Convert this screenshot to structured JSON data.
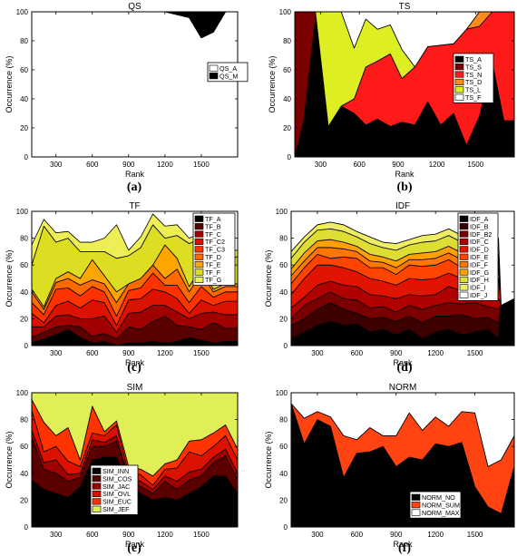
{
  "panel_tags": [
    "(a)",
    "(b)",
    "(c)",
    "(d)",
    "(e)",
    "(f)"
  ],
  "chart_data": [
    {
      "type": "area",
      "title": "QS",
      "xlabel": "Rank",
      "ylabel": "Occurrence (%)",
      "x": [
        100,
        200,
        300,
        400,
        500,
        600,
        700,
        800,
        900,
        1000,
        1100,
        1200,
        1300,
        1400,
        1500,
        1600,
        1700
      ],
      "xticks": [
        300,
        600,
        900,
        1200,
        1500
      ],
      "xlim": [
        100,
        1800
      ],
      "ylim": [
        0,
        100
      ],
      "yticks": [
        0,
        20,
        40,
        60,
        80,
        100
      ],
      "legend": "right",
      "series": [
        {
          "name": "QS_A",
          "color": "#ffffff",
          "values": [
            100,
            100,
            100,
            100,
            100,
            100,
            100,
            100,
            100,
            100,
            100,
            100,
            98,
            96,
            82,
            86,
            100
          ]
        },
        {
          "name": "QS_M",
          "color": "#000000",
          "values": [
            0,
            0,
            0,
            0,
            0,
            0,
            0,
            0,
            0,
            0,
            0,
            0,
            2,
            4,
            18,
            14,
            0
          ]
        }
      ]
    },
    {
      "type": "area",
      "title": "TS",
      "xlabel": "Rank",
      "ylabel": "Occurrence (%)",
      "x": [
        100,
        170,
        260,
        360,
        460,
        560,
        650,
        740,
        840,
        930,
        1030,
        1130,
        1230,
        1330,
        1430,
        1530,
        1630,
        1720,
        1800
      ],
      "xticks": [
        300,
        600,
        900,
        1200,
        1500
      ],
      "xlim": [
        100,
        1800
      ],
      "ylim": [
        0,
        100
      ],
      "yticks": [
        0,
        20,
        40,
        60,
        80,
        100
      ],
      "legend": "right",
      "series": [
        {
          "name": "TS_A",
          "color": "#000000",
          "values": [
            0,
            25,
            95,
            21,
            35,
            30,
            22,
            26,
            21,
            24,
            22,
            38,
            22,
            30,
            8,
            28,
            65,
            25,
            25
          ]
        },
        {
          "name": "TS_S",
          "color": "#7a0000",
          "values": [
            100,
            75,
            5,
            0,
            0,
            0,
            0,
            0,
            0,
            0,
            0,
            0,
            0,
            0,
            0,
            0,
            0,
            0,
            0
          ]
        },
        {
          "name": "TS_N",
          "color": "#ff1a1a",
          "values": [
            0,
            0,
            0,
            0,
            0,
            10,
            40,
            40,
            50,
            30,
            40,
            38,
            55,
            48,
            80,
            62,
            35,
            75,
            75
          ]
        },
        {
          "name": "TS_D",
          "color": "#ff8c1a",
          "values": [
            0,
            0,
            0,
            0,
            0,
            0,
            0,
            0,
            0,
            0,
            0,
            0,
            0,
            0,
            0,
            10,
            0,
            0,
            0
          ]
        },
        {
          "name": "TS_L",
          "color": "#ddee22",
          "values": [
            0,
            0,
            0,
            79,
            65,
            35,
            33,
            22,
            20,
            20,
            0,
            0,
            0,
            0,
            0,
            0,
            0,
            0,
            0
          ]
        },
        {
          "name": "TS_F",
          "color": "#ffffff",
          "values": [
            0,
            0,
            0,
            0,
            0,
            25,
            5,
            12,
            9,
            26,
            38,
            24,
            23,
            22,
            12,
            0,
            0,
            0,
            0
          ]
        }
      ]
    },
    {
      "type": "area",
      "title": "TF",
      "xlabel": "Rank",
      "ylabel": "Occurrence (%)",
      "x": [
        100,
        200,
        300,
        400,
        500,
        600,
        700,
        800,
        900,
        1000,
        1100,
        1200,
        1300,
        1400,
        1500,
        1600,
        1700
      ],
      "xticks": [
        300,
        600,
        900,
        1200,
        1500
      ],
      "xlim": [
        100,
        1800
      ],
      "ylim": [
        0,
        100
      ],
      "yticks": [
        0,
        20,
        40,
        60,
        80,
        100
      ],
      "legend": "right",
      "series": [
        {
          "name": "TF_A",
          "color": "#000000",
          "values": [
            2,
            5,
            8,
            12,
            6,
            2,
            3,
            0,
            2,
            2,
            3,
            2,
            3,
            6,
            4,
            2,
            3
          ]
        },
        {
          "name": "TF_B",
          "color": "#5a0000",
          "values": [
            4,
            5,
            6,
            3,
            8,
            5,
            6,
            5,
            12,
            10,
            15,
            20,
            12,
            8,
            8,
            15,
            10
          ]
        },
        {
          "name": "TF_C",
          "color": "#a00000",
          "values": [
            8,
            4,
            8,
            8,
            6,
            13,
            13,
            5,
            10,
            13,
            12,
            8,
            10,
            6,
            12,
            8,
            10
          ]
        },
        {
          "name": "TF_C2",
          "color": "#dd1100",
          "values": [
            10,
            3,
            8,
            10,
            8,
            14,
            10,
            5,
            10,
            10,
            12,
            10,
            10,
            4,
            10,
            5,
            10
          ]
        },
        {
          "name": "TF_C3",
          "color": "#ff3300",
          "values": [
            8,
            6,
            12,
            10,
            9,
            10,
            8,
            7,
            7,
            8,
            12,
            5,
            10,
            8,
            10,
            6,
            7
          ]
        },
        {
          "name": "TF_D",
          "color": "#ff6a00",
          "values": [
            8,
            4,
            5,
            7,
            8,
            5,
            6,
            10,
            5,
            7,
            6,
            5,
            12,
            8,
            10,
            4,
            4
          ]
        },
        {
          "name": "TF_E",
          "color": "#ffa500",
          "values": [
            2,
            2,
            3,
            5,
            5,
            15,
            6,
            8,
            0,
            0,
            0,
            25,
            8,
            4,
            4,
            2,
            2
          ]
        },
        {
          "name": "TF_F",
          "color": "#dddd22",
          "values": [
            18,
            60,
            27,
            25,
            20,
            6,
            18,
            25,
            21,
            23,
            30,
            5,
            17,
            32,
            22,
            22,
            20
          ]
        },
        {
          "name": "TF_G",
          "color": "#eeee55",
          "values": [
            15,
            5,
            7,
            5,
            7,
            7,
            10,
            25,
            4,
            8,
            8,
            9,
            8,
            4,
            4,
            5,
            5
          ]
        }
      ]
    },
    {
      "type": "area",
      "title": "IDF",
      "xlabel": "Rank",
      "ylabel": "Occurrence (%)",
      "x": [
        100,
        200,
        300,
        400,
        500,
        600,
        700,
        800,
        900,
        1000,
        1100,
        1200,
        1300,
        1400,
        1500,
        1600,
        1680,
        1700,
        1800
      ],
      "xticks": [
        300,
        600,
        900,
        1200,
        1500
      ],
      "xlim": [
        100,
        1800
      ],
      "ylim": [
        0,
        100
      ],
      "yticks": [
        0,
        20,
        40,
        60,
        80,
        100
      ],
      "legend": "right",
      "series": [
        {
          "name": "IDF_A",
          "color": "#000000",
          "values": [
            5,
            10,
            15,
            18,
            15,
            16,
            10,
            12,
            8,
            12,
            5,
            10,
            12,
            8,
            10,
            12,
            5,
            30,
            35
          ]
        },
        {
          "name": "IDF_B",
          "color": "#3c0000",
          "values": [
            10,
            10,
            12,
            14,
            12,
            8,
            10,
            9,
            10,
            10,
            12,
            12,
            10,
            15,
            10,
            9,
            12,
            0,
            0
          ]
        },
        {
          "name": "IDF_B2",
          "color": "#7a0000",
          "values": [
            5,
            10,
            8,
            8,
            8,
            10,
            8,
            8,
            7,
            8,
            10,
            8,
            10,
            8,
            12,
            8,
            10,
            0,
            0
          ]
        },
        {
          "name": "IDF_C",
          "color": "#b00000",
          "values": [
            8,
            6,
            10,
            8,
            10,
            10,
            10,
            8,
            10,
            8,
            10,
            8,
            12,
            10,
            8,
            8,
            8,
            0,
            0
          ]
        },
        {
          "name": "IDF_D",
          "color": "#e01400",
          "values": [
            10,
            14,
            15,
            12,
            13,
            11,
            12,
            11,
            10,
            12,
            12,
            12,
            10,
            9,
            10,
            13,
            15,
            0,
            0
          ]
        },
        {
          "name": "IDF_E",
          "color": "#ff4400",
          "values": [
            8,
            8,
            8,
            5,
            8,
            10,
            8,
            10,
            8,
            10,
            10,
            10,
            10,
            8,
            8,
            8,
            8,
            0,
            0
          ]
        },
        {
          "name": "IDF_F",
          "color": "#ff7700",
          "values": [
            6,
            5,
            5,
            8,
            6,
            5,
            5,
            4,
            5,
            4,
            5,
            5,
            5,
            6,
            5,
            4,
            5,
            0,
            0
          ]
        },
        {
          "name": "IDF_G",
          "color": "#ffa000",
          "values": [
            5,
            6,
            5,
            6,
            5,
            4,
            5,
            4,
            5,
            4,
            5,
            5,
            5,
            5,
            5,
            5,
            5,
            0,
            0
          ]
        },
        {
          "name": "IDF_H",
          "color": "#dddd33",
          "values": [
            8,
            8,
            8,
            8,
            8,
            7,
            8,
            7,
            8,
            7,
            8,
            8,
            8,
            8,
            8,
            8,
            8,
            0,
            0
          ]
        },
        {
          "name": "IDF_I",
          "color": "#eeee66",
          "values": [
            5,
            4,
            4,
            5,
            5,
            4,
            5,
            4,
            5,
            4,
            5,
            5,
            5,
            5,
            5,
            4,
            4,
            0,
            0
          ]
        },
        {
          "name": "IDF_J",
          "color": "#ffffff",
          "values": [
            30,
            19,
            10,
            8,
            10,
            15,
            19,
            23,
            24,
            21,
            18,
            17,
            13,
            18,
            19,
            21,
            20,
            70,
            65
          ]
        }
      ]
    },
    {
      "type": "area",
      "title": "SIM",
      "xlabel": "Rank",
      "ylabel": "Occurrence (%)",
      "x": [
        100,
        200,
        300,
        400,
        500,
        600,
        700,
        800,
        900,
        1000,
        1100,
        1200,
        1300,
        1400,
        1500,
        1600,
        1700,
        1800
      ],
      "xticks": [
        300,
        600,
        900,
        1200,
        1500
      ],
      "xlim": [
        100,
        1800
      ],
      "ylim": [
        0,
        100
      ],
      "yticks": [
        0,
        20,
        40,
        60,
        80,
        100
      ],
      "legend": "lower-left",
      "series": [
        {
          "name": "SIM_INN",
          "color": "#000000",
          "values": [
            35,
            28,
            25,
            22,
            30,
            50,
            52,
            52,
            30,
            25,
            20,
            22,
            20,
            25,
            30,
            38,
            38,
            25
          ]
        },
        {
          "name": "SIM_COS",
          "color": "#5a0000",
          "values": [
            32,
            15,
            15,
            12,
            7,
            10,
            8,
            12,
            5,
            5,
            5,
            12,
            8,
            10,
            8,
            10,
            15,
            10
          ]
        },
        {
          "name": "SIM_JAC",
          "color": "#a00000",
          "values": [
            5,
            5,
            10,
            5,
            3,
            5,
            3,
            4,
            2,
            4,
            3,
            4,
            6,
            6,
            5,
            4,
            5,
            5
          ]
        },
        {
          "name": "SIM_OVL",
          "color": "#dd1100",
          "values": [
            15,
            8,
            10,
            10,
            5,
            5,
            5,
            8,
            3,
            5,
            3,
            5,
            10,
            15,
            10,
            8,
            10,
            10
          ]
        },
        {
          "name": "SIM_EUC",
          "color": "#ff3300",
          "values": [
            8,
            22,
            8,
            25,
            5,
            20,
            3,
            3,
            5,
            4,
            7,
            4,
            6,
            8,
            12,
            10,
            8,
            8
          ]
        },
        {
          "name": "SIM_JEF",
          "color": "#dfef55",
          "values": [
            5,
            22,
            32,
            26,
            50,
            10,
            29,
            21,
            55,
            57,
            62,
            53,
            50,
            36,
            35,
            30,
            24,
            42
          ]
        }
      ]
    },
    {
      "type": "area",
      "title": "NORM",
      "xlabel": "Rank",
      "ylabel": "Occurrence (%)",
      "x": [
        100,
        200,
        300,
        400,
        500,
        600,
        700,
        800,
        900,
        1000,
        1100,
        1200,
        1300,
        1400,
        1500,
        1600,
        1700,
        1800
      ],
      "xticks": [
        300,
        600,
        900,
        1200,
        1500
      ],
      "xlim": [
        100,
        1800
      ],
      "ylim": [
        0,
        100
      ],
      "yticks": [
        0,
        20,
        40,
        60,
        80,
        100
      ],
      "legend": "lower-right",
      "series": [
        {
          "name": "NORM_NO",
          "color": "#000000",
          "values": [
            92,
            62,
            80,
            75,
            37,
            55,
            56,
            60,
            45,
            52,
            50,
            62,
            60,
            63,
            30,
            15,
            10,
            45
          ]
        },
        {
          "name": "NORM_SUM",
          "color": "#ff4411",
          "values": [
            0,
            19,
            6,
            7,
            31,
            10,
            18,
            8,
            23,
            33,
            22,
            20,
            15,
            23,
            55,
            30,
            40,
            23
          ]
        },
        {
          "name": "NORM_MAX",
          "color": "#ffffff",
          "values": [
            8,
            19,
            14,
            18,
            32,
            35,
            26,
            32,
            32,
            15,
            28,
            18,
            25,
            14,
            15,
            55,
            50,
            32
          ]
        }
      ]
    }
  ]
}
